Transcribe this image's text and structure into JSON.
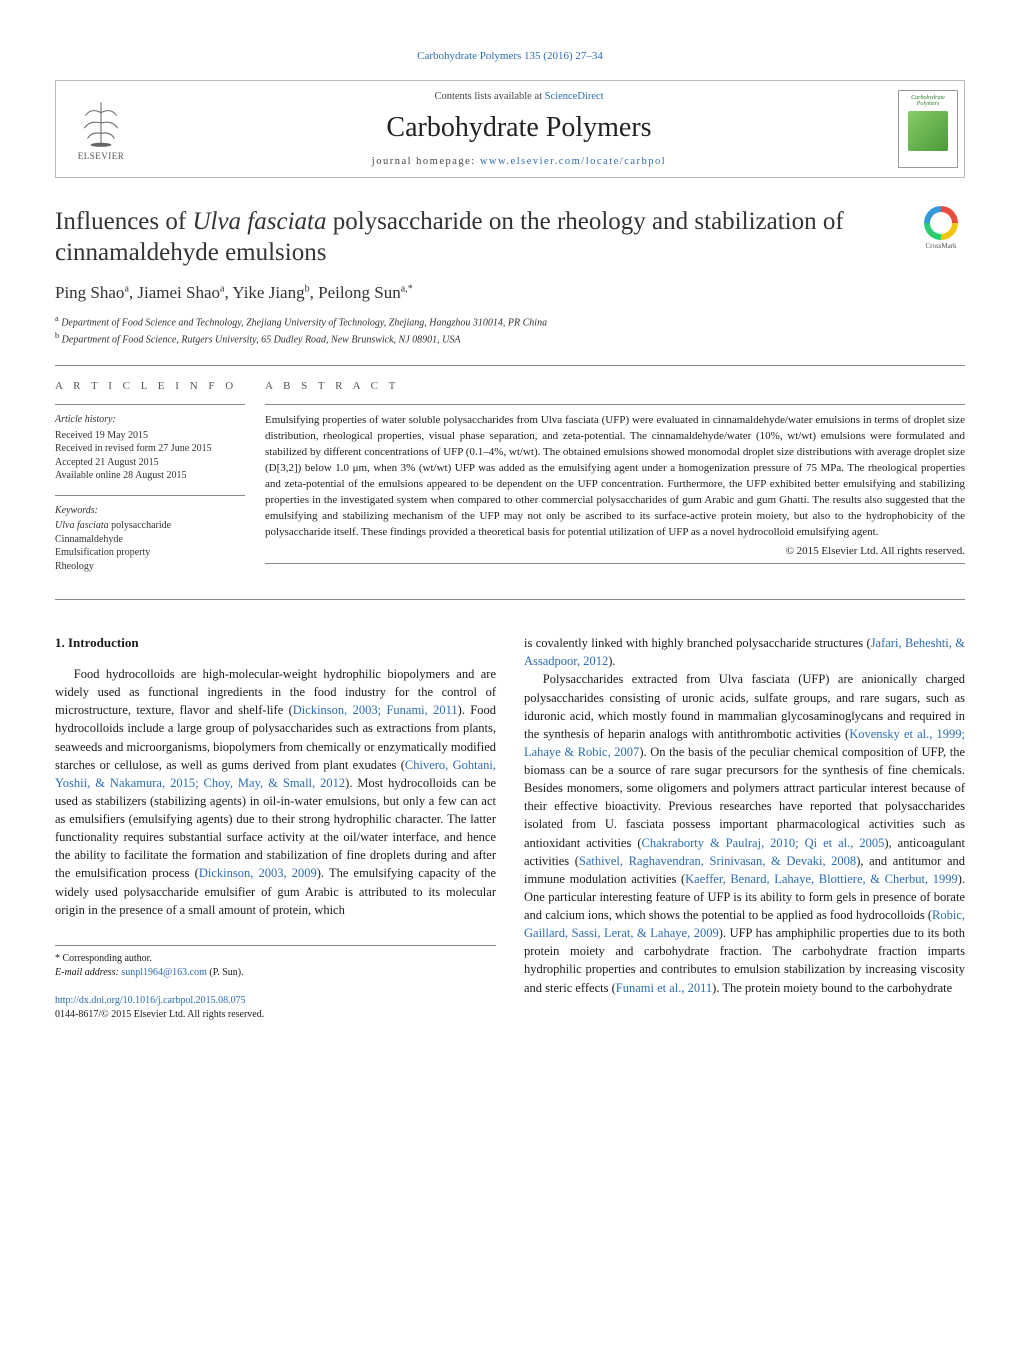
{
  "citation": "Carbohydrate Polymers 135 (2016) 27–34",
  "header": {
    "contents_prefix": "Contents lists available at ",
    "contents_link": "ScienceDirect",
    "journal_name": "Carbohydrate Polymers",
    "homepage_prefix": "journal homepage: ",
    "homepage_link": "www.elsevier.com/locate/carbpol",
    "elsevier_label": "ELSEVIER",
    "cover_text_1": "Carbohydrate",
    "cover_text_2": "Polymers"
  },
  "crossmark": {
    "label": "CrossMark"
  },
  "title_pre": "Influences of ",
  "title_em": "Ulva fasciata",
  "title_post": " polysaccharide on the rheology and stabilization of cinnamaldehyde emulsions",
  "authors_html": "Ping Shao<sup>a</sup>, Jiamei Shao<sup>a</sup>, Yike Jiang<sup>b</sup>, Peilong Sun<sup>a,*</sup>",
  "affiliations": {
    "a": "Department of Food Science and Technology, Zhejiang University of Technology, Zhejiang, Hangzhou 310014, PR China",
    "b": "Department of Food Science, Rutgers University, 65 Dudley Road, New Brunswick, NJ 08901, USA"
  },
  "article_info": {
    "heading": "A R T I C L E   I N F O",
    "history_label": "Article history:",
    "received": "Received 19 May 2015",
    "revised": "Received in revised form 27 June 2015",
    "accepted": "Accepted 21 August 2015",
    "online": "Available online 28 August 2015",
    "keywords_label": "Keywords:",
    "keywords": [
      "Ulva fasciata polysaccharide",
      "Cinnamaldehyde",
      "Emulsification property",
      "Rheology"
    ]
  },
  "abstract": {
    "heading": "A B S T R A C T",
    "text": "Emulsifying properties of water soluble polysaccharides from Ulva fasciata (UFP) were evaluated in cinnamaldehyde/water emulsions in terms of droplet size distribution, rheological properties, visual phase separation, and zeta-potential. The cinnamaldehyde/water (10%, wt/wt) emulsions were formulated and stabilized by different concentrations of UFP (0.1–4%, wt/wt). The obtained emulsions showed monomodal droplet size distributions with average droplet size (D[3,2]) below 1.0 μm, when 3% (wt/wt) UFP was added as the emulsifying agent under a homogenization pressure of 75 MPa. The rheological properties and zeta-potential of the emulsions appeared to be dependent on the UFP concentration. Furthermore, the UFP exhibited better emulsifying and stabilizing properties in the investigated system when compared to other commercial polysaccharides of gum Arabic and gum Ghatti. The results also suggested that the emulsifying and stabilizing mechanism of the UFP may not only be ascribed to its surface-active protein moiety, but also to the hydrophobicity of the polysaccharide itself. These findings provided a theoretical basis for potential utilization of UFP as a novel hydrocolloid emulsifying agent.",
    "copyright": "© 2015 Elsevier Ltd. All rights reserved."
  },
  "section1_heading": "1.  Introduction",
  "col_left_p1_a": "Food hydrocolloids are high-molecular-weight hydrophilic biopolymers and are widely used as functional ingredients in the food industry for the control of microstructure, texture, flavor and shelf-life (",
  "col_left_ref1": "Dickinson, 2003; Funami, 2011",
  "col_left_p1_b": "). Food hydrocolloids include a large group of polysaccharides such as extractions from plants, seaweeds and microorganisms, biopolymers from chemically or enzymatically modified starches or cellulose, as well as gums derived from plant exudates (",
  "col_left_ref2": "Chivero, Gohtani, Yoshii, & Nakamura, 2015; Choy, May, & Small, 2012",
  "col_left_p1_c": "). Most hydrocolloids can be used as stabilizers (stabilizing agents) in oil-in-water emulsions, but only a few can act as emulsifiers (emulsifying agents) due to their strong hydrophilic character. The latter functionality requires substantial surface activity at the oil/water interface, and hence the ability to facilitate the formation and stabilization of fine droplets during and after the emulsification process (",
  "col_left_ref3": "Dickinson, 2003, 2009",
  "col_left_p1_d": "). The emulsifying capacity of the widely used polysaccharide emulsifier of gum Arabic is attributed to its molecular origin in the presence of a small amount of protein, which",
  "col_right_p1_a": "is covalently linked with highly branched polysaccharide structures (",
  "col_right_ref1": "Jafari, Beheshti, & Assadpoor, 2012",
  "col_right_p1_b": ").",
  "col_right_p2_a": "Polysaccharides extracted from Ulva fasciata (UFP) are anionically charged polysaccharides consisting of uronic acids, sulfate groups, and rare sugars, such as iduronic acid, which mostly found in mammalian glycosaminoglycans and required in the synthesis of heparin analogs with antithrombotic activities (",
  "col_right_ref2": "Kovensky et al., 1999; Lahaye & Robic, 2007",
  "col_right_p2_b": "). On the basis of the peculiar chemical composition of UFP, the biomass can be a source of rare sugar precursors for the synthesis of fine chemicals. Besides monomers, some oligomers and polymers attract particular interest because of their effective bioactivity. Previous researches have reported that polysaccharides isolated from U. fasciata possess important pharmacological activities such as antioxidant activities (",
  "col_right_ref3": "Chakraborty & Paulraj, 2010; Qi et al., 2005",
  "col_right_p2_c": "), anticoagulant activities (",
  "col_right_ref4": "Sathivel, Raghavendran, Srinivasan, & Devaki, 2008",
  "col_right_p2_d": "), and antitumor and immune modulation activities (",
  "col_right_ref5": "Kaeffer, Benard, Lahaye, Blottiere, & Cherbut, 1999",
  "col_right_p2_e": "). One particular interesting feature of UFP is its ability to form gels in presence of borate and calcium ions, which shows the potential to be applied as food hydrocolloids (",
  "col_right_ref6": "Robic, Gaillard, Sassi, Lerat, & Lahaye, 2009",
  "col_right_p2_f": "). UFP has amphiphilic properties due to its both protein moiety and carbohydrate fraction. The carbohydrate fraction imparts hydrophilic properties and contributes to emulsion stabilization by increasing viscosity and steric effects (",
  "col_right_ref7": "Funami et al., 2011",
  "col_right_p2_g": "). The protein moiety bound to the carbohydrate",
  "footer": {
    "corr_label": "* Corresponding author.",
    "email_label": "E-mail address: ",
    "email": "sunpl1964@163.com",
    "email_name": " (P. Sun).",
    "doi_link": "http://dx.doi.org/10.1016/j.carbpol.2015.08.075",
    "issn_line": "0144-8617/© 2015 Elsevier Ltd. All rights reserved."
  },
  "colors": {
    "link": "#2b6cb0",
    "text": "#1a1a1a",
    "border": "#888888",
    "elsevier_orange": "#e67a22"
  }
}
